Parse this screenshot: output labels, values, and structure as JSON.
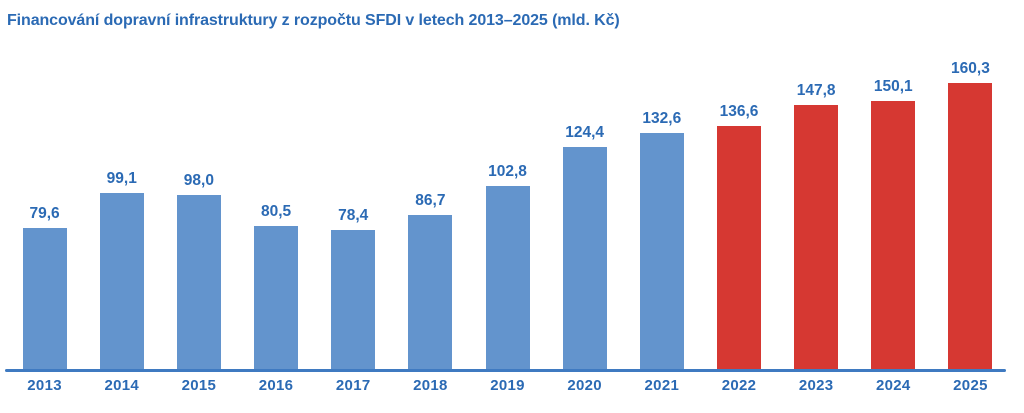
{
  "title": "Financování dopravní infrastruktury z rozpočtu SFDI v letech 2013–2025 (mld. Kč)",
  "colors": {
    "bar_blue": "#6394CD",
    "bar_red": "#D63832",
    "text_blue": "#2B6AB4",
    "axis_line": "#3F7AC1",
    "background": "#FFFFFF"
  },
  "chart_data": {
    "type": "bar",
    "title": "Financování dopravní infrastruktury z rozpočtu SFDI v letech 2013–2025 (mld. Kč)",
    "categories": [
      "2013",
      "2014",
      "2015",
      "2016",
      "2017",
      "2018",
      "2019",
      "2020",
      "2021",
      "2022",
      "2023",
      "2024",
      "2025"
    ],
    "values": [
      79.6,
      99.1,
      98.0,
      80.5,
      78.4,
      86.7,
      102.8,
      124.4,
      132.6,
      136.6,
      147.8,
      150.1,
      160.3
    ],
    "value_labels": [
      "79,6",
      "99,1",
      "98,0",
      "80,5",
      "78,4",
      "86,7",
      "102,8",
      "124,4",
      "132,6",
      "136,6",
      "147,8",
      "150,1",
      "160,3"
    ],
    "bar_colors": [
      "#6394CD",
      "#6394CD",
      "#6394CD",
      "#6394CD",
      "#6394CD",
      "#6394CD",
      "#6394CD",
      "#6394CD",
      "#6394CD",
      "#D63832",
      "#D63832",
      "#D63832",
      "#D63832"
    ],
    "xlabel": "",
    "ylabel": "",
    "unit": "mld. Kč",
    "ylim": [
      0,
      170
    ],
    "y_axis_visible": false,
    "gridlines": false,
    "data_labels_visible": true,
    "legend": "none"
  }
}
